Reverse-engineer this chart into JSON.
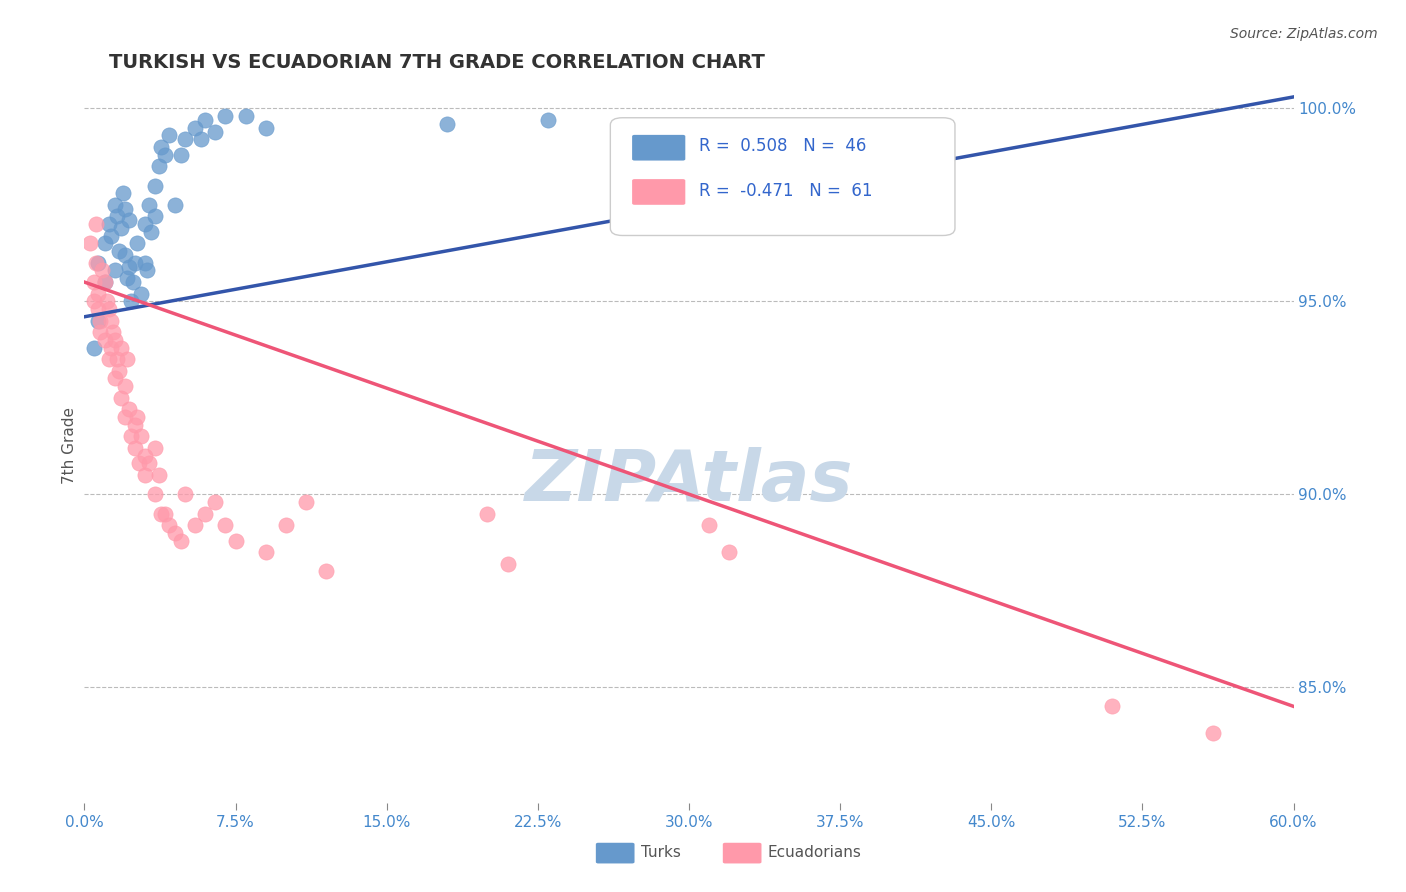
{
  "title": "TURKISH VS ECUADORIAN 7TH GRADE CORRELATION CHART",
  "source_text": "Source: ZipAtlas.com",
  "ylabel": "7th Grade",
  "ylabel_right_ticks": [
    "100.0%",
    "95.0%",
    "90.0%",
    "85.0%"
  ],
  "ylabel_right_vals": [
    1.0,
    0.95,
    0.9,
    0.85
  ],
  "xmin": 0.0,
  "xmax": 0.6,
  "ymin": 0.82,
  "ymax": 1.005,
  "blue_R": 0.508,
  "blue_N": 46,
  "pink_R": -0.471,
  "pink_N": 61,
  "blue_color": "#6699CC",
  "pink_color": "#FF99AA",
  "blue_line_color": "#3355AA",
  "pink_line_color": "#EE5577",
  "watermark_color": "#C8D8E8",
  "legend_R_color": "#3366CC",
  "blue_scatter_x": [
    0.005,
    0.007,
    0.007,
    0.01,
    0.01,
    0.012,
    0.013,
    0.015,
    0.015,
    0.016,
    0.017,
    0.018,
    0.019,
    0.02,
    0.02,
    0.021,
    0.022,
    0.022,
    0.023,
    0.024,
    0.025,
    0.026,
    0.028,
    0.03,
    0.03,
    0.031,
    0.032,
    0.033,
    0.035,
    0.035,
    0.037,
    0.038,
    0.04,
    0.042,
    0.045,
    0.048,
    0.05,
    0.055,
    0.058,
    0.06,
    0.065,
    0.07,
    0.08,
    0.09,
    0.18,
    0.23
  ],
  "blue_scatter_y": [
    0.938,
    0.945,
    0.96,
    0.955,
    0.965,
    0.97,
    0.967,
    0.958,
    0.975,
    0.972,
    0.963,
    0.969,
    0.978,
    0.962,
    0.974,
    0.956,
    0.959,
    0.971,
    0.95,
    0.955,
    0.96,
    0.965,
    0.952,
    0.96,
    0.97,
    0.958,
    0.975,
    0.968,
    0.972,
    0.98,
    0.985,
    0.99,
    0.988,
    0.993,
    0.975,
    0.988,
    0.992,
    0.995,
    0.992,
    0.997,
    0.994,
    0.998,
    0.998,
    0.995,
    0.996,
    0.997
  ],
  "pink_scatter_x": [
    0.003,
    0.005,
    0.005,
    0.006,
    0.006,
    0.007,
    0.007,
    0.008,
    0.008,
    0.009,
    0.01,
    0.01,
    0.011,
    0.012,
    0.012,
    0.013,
    0.013,
    0.014,
    0.015,
    0.015,
    0.016,
    0.017,
    0.018,
    0.018,
    0.02,
    0.02,
    0.021,
    0.022,
    0.023,
    0.025,
    0.025,
    0.026,
    0.027,
    0.028,
    0.03,
    0.03,
    0.032,
    0.035,
    0.035,
    0.037,
    0.038,
    0.04,
    0.042,
    0.045,
    0.048,
    0.05,
    0.055,
    0.06,
    0.065,
    0.07,
    0.075,
    0.09,
    0.1,
    0.11,
    0.12,
    0.2,
    0.21,
    0.31,
    0.32,
    0.51,
    0.56
  ],
  "pink_scatter_y": [
    0.965,
    0.955,
    0.95,
    0.97,
    0.96,
    0.948,
    0.952,
    0.945,
    0.942,
    0.958,
    0.955,
    0.94,
    0.95,
    0.948,
    0.935,
    0.945,
    0.938,
    0.942,
    0.94,
    0.93,
    0.935,
    0.932,
    0.938,
    0.925,
    0.928,
    0.92,
    0.935,
    0.922,
    0.915,
    0.918,
    0.912,
    0.92,
    0.908,
    0.915,
    0.91,
    0.905,
    0.908,
    0.912,
    0.9,
    0.905,
    0.895,
    0.895,
    0.892,
    0.89,
    0.888,
    0.9,
    0.892,
    0.895,
    0.898,
    0.892,
    0.888,
    0.885,
    0.892,
    0.898,
    0.88,
    0.895,
    0.882,
    0.892,
    0.885,
    0.845,
    0.838
  ],
  "blue_trend_x": [
    0.0,
    0.6
  ],
  "blue_trend_y": [
    0.946,
    1.003
  ],
  "pink_trend_x": [
    0.0,
    0.6
  ],
  "pink_trend_y": [
    0.955,
    0.845
  ],
  "grid_color": "#BBBBBB",
  "grid_style": "--",
  "background_color": "#FFFFFF",
  "tick_color": "#4488CC",
  "font_color_title": "#333333"
}
